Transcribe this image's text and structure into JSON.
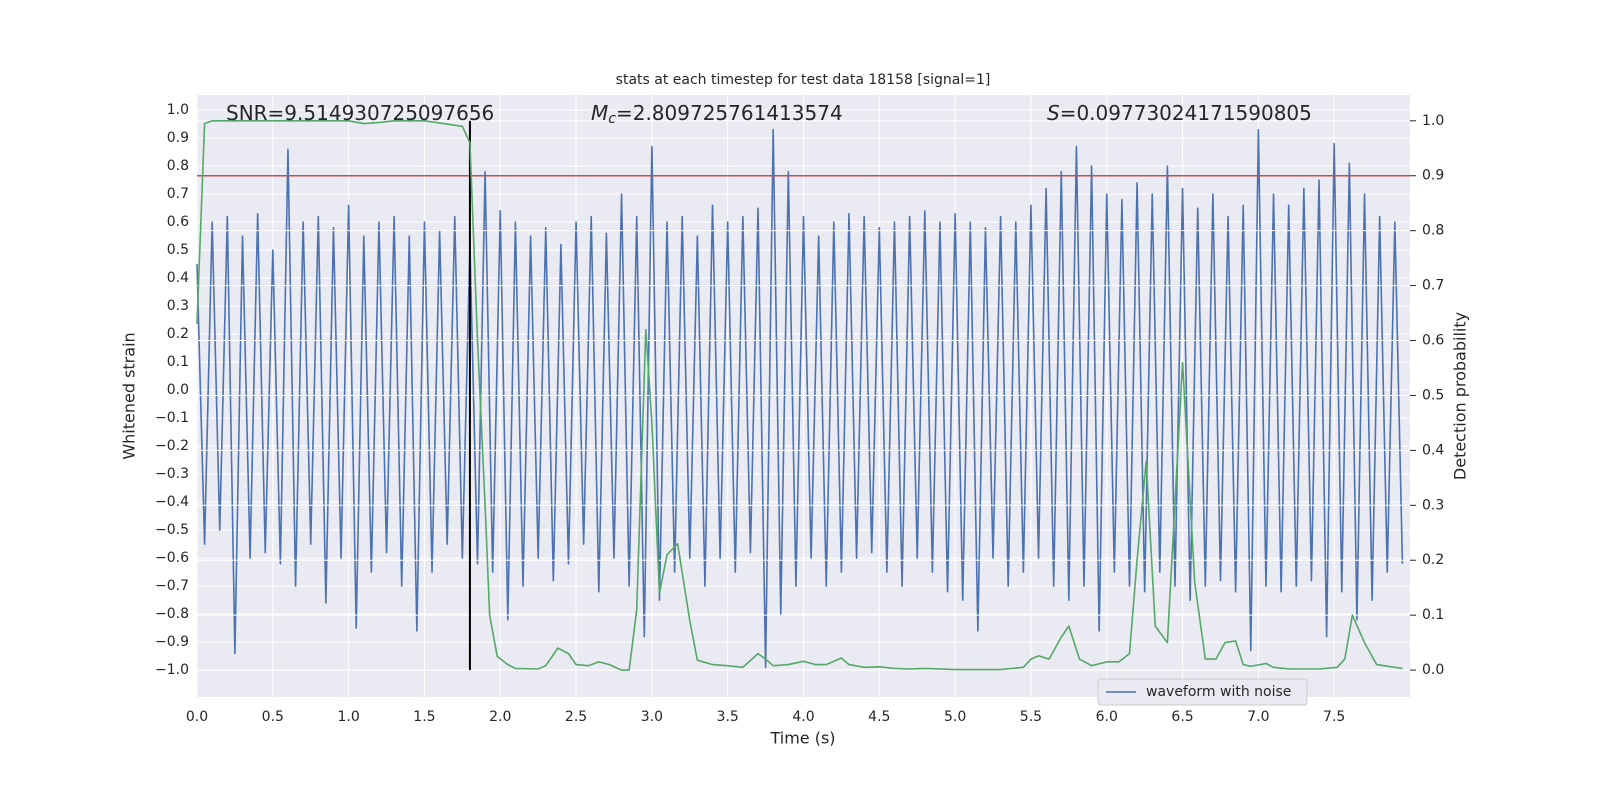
{
  "chart_data": {
    "type": "line",
    "title": "stats at each timestep for test data 18158 [signal=1]",
    "xlabel": "Time (s)",
    "ylabel": "Whitened strain",
    "y2label": "Detection probability",
    "annotations": [
      {
        "text": "SNR=9.514930725097656"
      },
      {
        "symbol": "M",
        "sub": "c",
        "text": "=2.809725761413574"
      },
      {
        "symbol": "S",
        "text": "=0.09773024171590805"
      }
    ],
    "xlim": [
      0,
      8
    ],
    "ylim": [
      -1.096,
      1.054
    ],
    "y2lim": [
      -0.049,
      1.047
    ],
    "xticks": [
      {
        "value": 0,
        "label": "0.0"
      },
      {
        "value": 0.5,
        "label": "0.5"
      },
      {
        "value": 1,
        "label": "1.0"
      },
      {
        "value": 1.5,
        "label": "1.5"
      },
      {
        "value": 2,
        "label": "2.0"
      },
      {
        "value": 2.5,
        "label": "2.5"
      },
      {
        "value": 3,
        "label": "3.0"
      },
      {
        "value": 3.5,
        "label": "3.5"
      },
      {
        "value": 4,
        "label": "4.0"
      },
      {
        "value": 4.5,
        "label": "4.5"
      },
      {
        "value": 5,
        "label": "5.0"
      },
      {
        "value": 5.5,
        "label": "5.5"
      },
      {
        "value": 6,
        "label": "6.0"
      },
      {
        "value": 6.5,
        "label": "6.5"
      },
      {
        "value": 7,
        "label": "7.0"
      },
      {
        "value": 7.5,
        "label": "7.5"
      }
    ],
    "yticks": [
      {
        "value": -1,
        "label": "−1.0"
      },
      {
        "value": -0.9,
        "label": "−0.9"
      },
      {
        "value": -0.8,
        "label": "−0.8"
      },
      {
        "value": -0.7,
        "label": "−0.7"
      },
      {
        "value": -0.6,
        "label": "−0.6"
      },
      {
        "value": -0.5,
        "label": "−0.5"
      },
      {
        "value": -0.4,
        "label": "−0.4"
      },
      {
        "value": -0.3,
        "label": "−0.3"
      },
      {
        "value": -0.2,
        "label": "−0.2"
      },
      {
        "value": -0.1,
        "label": "−0.1"
      },
      {
        "value": 0,
        "label": "0.0"
      },
      {
        "value": 0.1,
        "label": "0.1"
      },
      {
        "value": 0.2,
        "label": "0.2"
      },
      {
        "value": 0.3,
        "label": "0.3"
      },
      {
        "value": 0.4,
        "label": "0.4"
      },
      {
        "value": 0.5,
        "label": "0.5"
      },
      {
        "value": 0.6,
        "label": "0.6"
      },
      {
        "value": 0.7,
        "label": "0.7"
      },
      {
        "value": 0.8,
        "label": "0.8"
      },
      {
        "value": 0.9,
        "label": "0.9"
      },
      {
        "value": 1,
        "label": "1.0"
      }
    ],
    "y2ticks": [
      {
        "value": 0,
        "label": "0.0"
      },
      {
        "value": 0.1,
        "label": "0.1"
      },
      {
        "value": 0.2,
        "label": "0.2"
      },
      {
        "value": 0.3,
        "label": "0.3"
      },
      {
        "value": 0.4,
        "label": "0.4"
      },
      {
        "value": 0.5,
        "label": "0.5"
      },
      {
        "value": 0.6,
        "label": "0.6"
      },
      {
        "value": 0.7,
        "label": "0.7"
      },
      {
        "value": 0.8,
        "label": "0.8"
      },
      {
        "value": 0.9,
        "label": "0.9"
      },
      {
        "value": 1,
        "label": "1.0"
      }
    ],
    "grid": true,
    "legend": "lower right",
    "series": [
      {
        "name": "waveform with noise",
        "color": "#4c72b0",
        "x": [
          0,
          0.05,
          0.1,
          0.15,
          0.2,
          0.25,
          0.3,
          0.35,
          0.4,
          0.45,
          0.5,
          0.55,
          0.6,
          0.65,
          0.7,
          0.75,
          0.8,
          0.85,
          0.9,
          0.95,
          1,
          1.05,
          1.1,
          1.15,
          1.2,
          1.25,
          1.3,
          1.35,
          1.4,
          1.45,
          1.5,
          1.55,
          1.6,
          1.65,
          1.7,
          1.75,
          1.8,
          1.85,
          1.9,
          1.95,
          2,
          2.05,
          2.1,
          2.15,
          2.2,
          2.25,
          2.3,
          2.35,
          2.4,
          2.45,
          2.5,
          2.55,
          2.6,
          2.65,
          2.7,
          2.75,
          2.8,
          2.85,
          2.9,
          2.95,
          3,
          3.05,
          3.1,
          3.15,
          3.2,
          3.25,
          3.3,
          3.35,
          3.4,
          3.45,
          3.5,
          3.55,
          3.6,
          3.65,
          3.7,
          3.75,
          3.8,
          3.85,
          3.9,
          3.95,
          4,
          4.05,
          4.1,
          4.15,
          4.2,
          4.25,
          4.3,
          4.35,
          4.4,
          4.45,
          4.5,
          4.55,
          4.6,
          4.65,
          4.7,
          4.75,
          4.8,
          4.85,
          4.9,
          4.95,
          5,
          5.05,
          5.1,
          5.15,
          5.2,
          5.25,
          5.3,
          5.35,
          5.4,
          5.45,
          5.5,
          5.55,
          5.6,
          5.65,
          5.7,
          5.75,
          5.8,
          5.85,
          5.9,
          5.95,
          6,
          6.05,
          6.1,
          6.15,
          6.2,
          6.25,
          6.3,
          6.35,
          6.4,
          6.45,
          6.5,
          6.55,
          6.6,
          6.65,
          6.7,
          6.75,
          6.8,
          6.85,
          6.9,
          6.95,
          7,
          7.05,
          7.1,
          7.15,
          7.2,
          7.25,
          7.3,
          7.35,
          7.4,
          7.45,
          7.5,
          7.55,
          7.6,
          7.65,
          7.7,
          7.75,
          7.8,
          7.85,
          7.9,
          7.95
        ],
        "values": [
          0.45,
          -0.55,
          0.6,
          -0.5,
          0.62,
          -0.94,
          0.55,
          -0.6,
          0.63,
          -0.58,
          0.5,
          -0.62,
          0.86,
          -0.7,
          0.6,
          -0.55,
          0.62,
          -0.76,
          0.58,
          -0.6,
          0.66,
          -0.85,
          0.55,
          -0.65,
          0.6,
          -0.58,
          0.62,
          -0.7,
          0.55,
          -0.86,
          0.6,
          -0.65,
          0.57,
          -0.55,
          0.62,
          -0.6,
          0.52,
          -0.62,
          0.78,
          -0.65,
          0.64,
          -0.82,
          0.6,
          -0.7,
          0.55,
          -0.6,
          0.58,
          -0.68,
          0.52,
          -0.62,
          0.6,
          -0.55,
          0.62,
          -0.72,
          0.56,
          -0.6,
          0.7,
          -0.7,
          0.62,
          -0.88,
          0.87,
          -0.75,
          0.6,
          -0.65,
          0.62,
          -0.6,
          0.55,
          -0.7,
          0.66,
          -0.6,
          0.6,
          -0.65,
          0.62,
          -0.58,
          0.65,
          -0.99,
          0.93,
          -0.8,
          0.78,
          -0.7,
          0.62,
          -0.6,
          0.55,
          -0.7,
          0.6,
          -0.65,
          0.63,
          -0.6,
          0.62,
          -0.58,
          0.58,
          -0.65,
          0.6,
          -0.7,
          0.62,
          -0.6,
          0.64,
          -0.65,
          0.6,
          -0.72,
          0.63,
          -0.75,
          0.6,
          -0.86,
          0.58,
          -0.6,
          0.62,
          -0.7,
          0.6,
          -0.65,
          0.66,
          -0.6,
          0.72,
          -0.7,
          0.78,
          -0.75,
          0.87,
          -0.7,
          0.8,
          -0.86,
          0.7,
          -0.65,
          0.68,
          -0.7,
          0.74,
          -0.72,
          0.7,
          -0.65,
          0.8,
          -0.7,
          0.72,
          -0.75,
          0.65,
          -0.7,
          0.7,
          -0.68,
          0.62,
          -0.72,
          0.66,
          -0.93,
          0.93,
          -0.7,
          0.7,
          -0.72,
          0.66,
          -0.7,
          0.72,
          -0.68,
          0.75,
          -0.88,
          0.88,
          -0.72,
          0.81,
          -0.82,
          0.7,
          -0.75,
          0.62,
          -0.65,
          0.6,
          -0.62
        ]
      },
      {
        "color": "#55a868",
        "axis": "y2",
        "x": [
          0,
          0.05,
          0.1,
          0.2,
          0.5,
          0.8,
          1,
          1.1,
          1.2,
          1.3,
          1.5,
          1.75,
          1.8,
          1.85,
          1.9,
          1.93,
          1.98,
          2.05,
          2.1,
          2.25,
          2.3,
          2.38,
          2.45,
          2.5,
          2.58,
          2.65,
          2.72,
          2.8,
          2.85,
          2.9,
          2.96,
          3,
          3.05,
          3.1,
          3.17,
          3.25,
          3.3,
          3.4,
          3.5,
          3.6,
          3.7,
          3.75,
          3.8,
          3.9,
          4,
          4.08,
          4.15,
          4.25,
          4.3,
          4.4,
          4.5,
          4.6,
          4.7,
          4.8,
          5,
          5.3,
          5.45,
          5.5,
          5.55,
          5.62,
          5.7,
          5.75,
          5.82,
          5.9,
          6,
          6.08,
          6.15,
          6.2,
          6.26,
          6.32,
          6.4,
          6.5,
          6.58,
          6.65,
          6.72,
          6.78,
          6.85,
          6.9,
          6.95,
          7.05,
          7.1,
          7.2,
          7.4,
          7.52,
          7.57,
          7.62,
          7.7,
          7.78,
          7.95
        ],
        "values": [
          0.63,
          0.995,
          1,
          1,
          1,
          1,
          1,
          0.995,
          0.997,
          1,
          1,
          0.99,
          0.96,
          0.6,
          0.3,
          0.1,
          0.025,
          0.01,
          0.003,
          0.002,
          0.008,
          0.04,
          0.03,
          0.01,
          0.008,
          0.015,
          0.01,
          0,
          0,
          0.11,
          0.62,
          0.45,
          0.14,
          0.21,
          0.23,
          0.09,
          0.018,
          0.01,
          0.008,
          0.005,
          0.03,
          0.02,
          0.008,
          0.01,
          0.016,
          0.01,
          0.01,
          0.022,
          0.01,
          0.005,
          0.006,
          0.003,
          0.002,
          0.003,
          0.001,
          0.001,
          0.005,
          0.02,
          0.026,
          0.02,
          0.06,
          0.08,
          0.02,
          0.008,
          0.015,
          0.015,
          0.03,
          0.2,
          0.38,
          0.08,
          0.05,
          0.56,
          0.16,
          0.02,
          0.02,
          0.05,
          0.053,
          0.01,
          0.007,
          0.012,
          0.005,
          0.002,
          0.002,
          0.005,
          0.02,
          0.1,
          0.05,
          0.01,
          0.003
        ]
      }
    ],
    "hline": {
      "y2": 0.9,
      "color": "#c44e52"
    },
    "vline": {
      "x": 1.8,
      "y2min": 0,
      "y2max": 1,
      "color": "#000000"
    }
  }
}
